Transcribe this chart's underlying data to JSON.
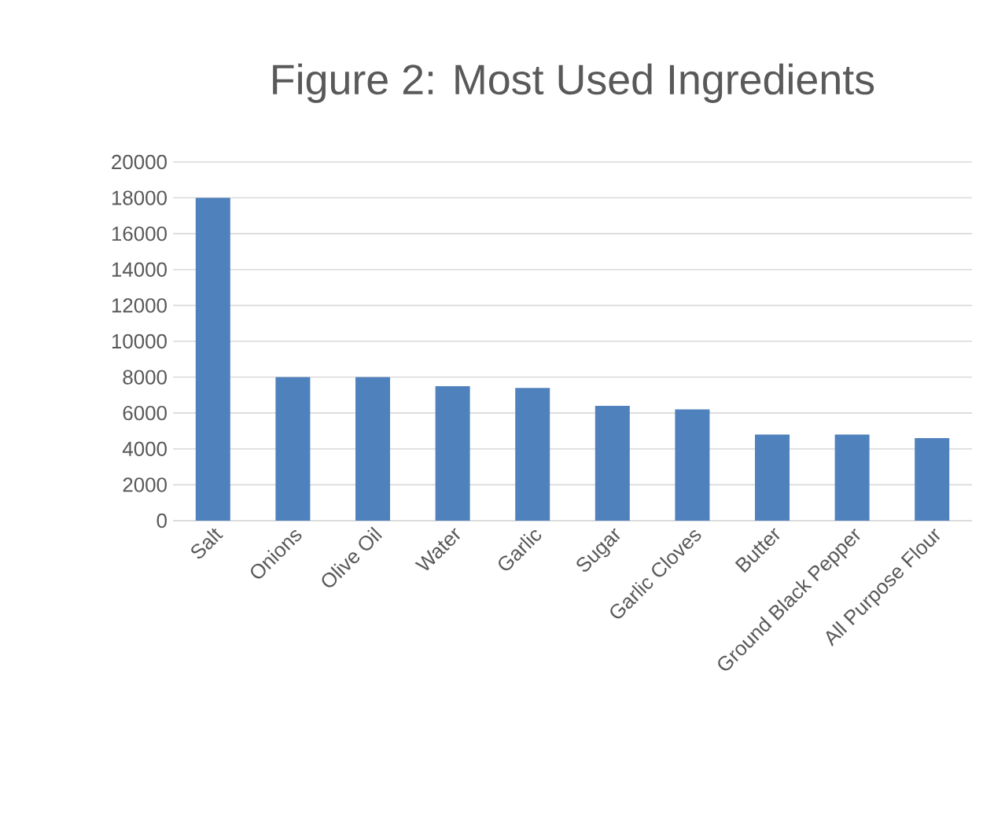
{
  "chart_data": {
    "type": "bar",
    "title": "Figure 2: Most Used Ingredients",
    "categories": [
      "Salt",
      "Onions",
      "Olive Oil",
      "Water",
      "Garlic",
      "Sugar",
      "Garlic Cloves",
      "Butter",
      "Ground Black Pepper",
      "All Purpose Flour"
    ],
    "values": [
      18000,
      8000,
      8000,
      7500,
      7400,
      6400,
      6200,
      4800,
      4800,
      4600
    ],
    "color": "#4f81bd",
    "ylim": [
      0,
      20000
    ],
    "yticks": [
      0,
      2000,
      4000,
      6000,
      8000,
      10000,
      12000,
      14000,
      16000,
      18000,
      20000
    ],
    "grid": "y"
  }
}
